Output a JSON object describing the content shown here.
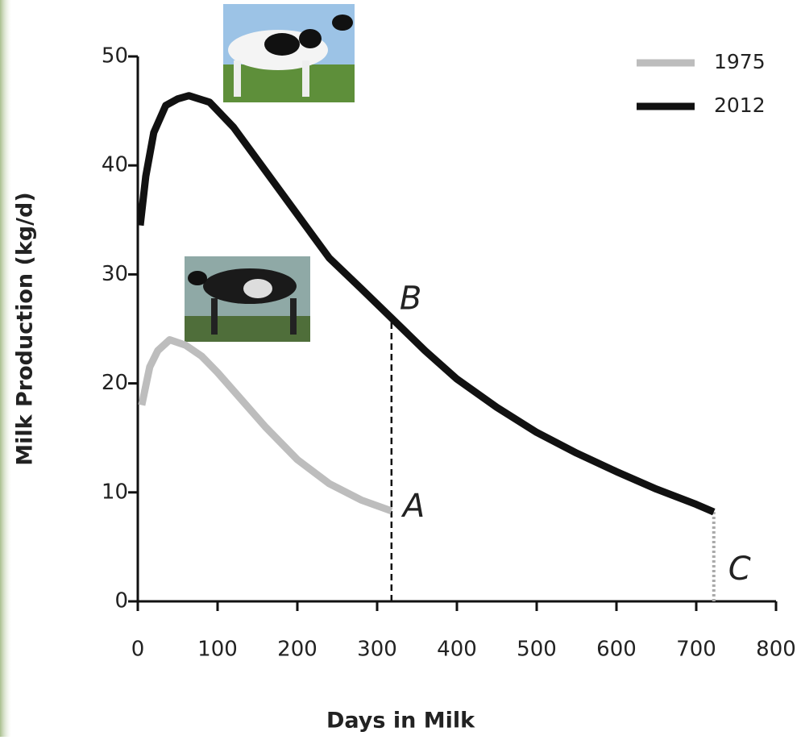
{
  "chart_data": {
    "type": "line",
    "xlabel": "Days in Milk",
    "ylabel": "Milk Production (kg/d)",
    "xlim": [
      0,
      800
    ],
    "xticks": [
      0,
      100,
      200,
      300,
      400,
      500,
      600,
      700,
      800
    ],
    "ylim": [
      0,
      50
    ],
    "yticks": [
      0,
      10,
      20,
      30,
      40,
      50
    ],
    "legend": "upper right",
    "annotations": [
      "A",
      "B",
      "C"
    ],
    "series": [
      {
        "name": "1975",
        "color": "#bdbdbd",
        "x": [
          5,
          15,
          25,
          40,
          60,
          80,
          100,
          130,
          160,
          200,
          240,
          280,
          318
        ],
        "values": [
          18,
          21.5,
          23,
          24,
          23.5,
          22.5,
          21,
          18.5,
          16,
          13,
          10.8,
          9.3,
          8.3
        ]
      },
      {
        "name": "2012",
        "color": "#111111",
        "x": [
          3,
          10,
          20,
          35,
          50,
          64,
          90,
          120,
          150,
          180,
          210,
          240,
          280,
          318,
          360,
          400,
          450,
          500,
          550,
          600,
          650,
          700,
          722
        ],
        "values": [
          34.5,
          39,
          43,
          45.5,
          46.1,
          46.4,
          45.8,
          43.5,
          40.5,
          37.5,
          34.5,
          31.5,
          28.7,
          26,
          23,
          20.4,
          17.8,
          15.5,
          13.6,
          11.9,
          10.3,
          8.9,
          8.2
        ]
      }
    ]
  }
}
